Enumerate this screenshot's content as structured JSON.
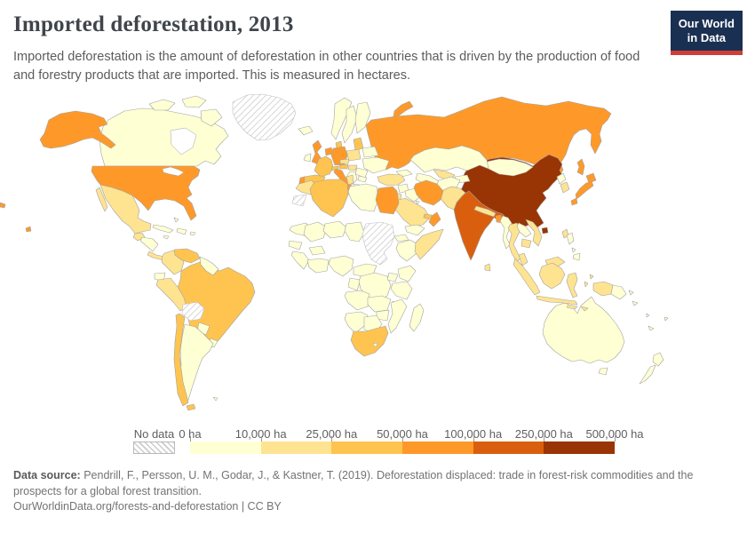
{
  "header": {
    "title": "Imported deforestation, 2013",
    "subtitle": "Imported deforestation is the amount of deforestation in other countries that is driven by the production of food and forestry products that are imported. This is measured in hectares.",
    "logo": {
      "line1": "Our World",
      "line2": "in Data"
    }
  },
  "legend": {
    "no_data_label": "No data",
    "ticks": [
      "0 ha",
      "10,000 ha",
      "25,000 ha",
      "50,000 ha",
      "100,000 ha",
      "250,000 ha",
      "500,000 ha"
    ],
    "colors": [
      "#ffffd4",
      "#fee391",
      "#fec44f",
      "#fe9929",
      "#d95f0e",
      "#993404"
    ]
  },
  "footer": {
    "source_label": "Data source:",
    "source_text": " Pendrill, F., Persson, U. M., Godar, J., & Kastner, T. (2019). Deforestation displaced: trade in forest-risk commodities and the prospects for a global forest transition.",
    "link_line": "OurWorldinData.org/forests-and-deforestation | CC BY"
  },
  "colors": {
    "logo_bg": "#1a3053",
    "logo_red": "#cf3e36",
    "map_border": "#a3a3a3",
    "no_data_hatch": "#cccccc"
  },
  "chart_data": {
    "type": "choropleth",
    "title": "Imported deforestation, 2013",
    "unit": "hectares",
    "year": 2013,
    "legend_position": "bottom",
    "bins": [
      {
        "range": "0 – 10,000 ha",
        "color": "#ffffd4"
      },
      {
        "range": "10,000 – 25,000 ha",
        "color": "#fee391"
      },
      {
        "range": "25,000 – 50,000 ha",
        "color": "#fec44f"
      },
      {
        "range": "50,000 – 100,000 ha",
        "color": "#fe9929"
      },
      {
        "range": "100,000 – 250,000 ha",
        "color": "#d95f0e"
      },
      {
        "range": "250,000 – 500,000 ha",
        "color": "#993404"
      }
    ],
    "no_data": [
      "Greenland",
      "Bolivia",
      "Sudan",
      "Western Sahara"
    ],
    "country_bins": {
      "Canada": 1,
      "Honduras-Nicaragua": 1,
      "Cuba": 1,
      "Hispaniola": 1,
      "Jamaica": 1,
      "Puerto Rico": 1,
      "Bahamas": 1,
      "Ecuador": 1,
      "Guyana-Suriname": 1,
      "Paraguay": 1,
      "Uruguay": 1,
      "Argentina": 1,
      "Falkland Islands": 1,
      "Iceland": 1,
      "Ireland": 1,
      "Norway": 1,
      "Sweden": 1,
      "Finland": 1,
      "Belarus": 1,
      "Ukraine": 1,
      "Romania": 1,
      "Bulgaria": 1,
      "Balkans": 1,
      "Greece": 1,
      "Kazakhstan": 1,
      "Turkmenistan": 1,
      "Kyrgyzstan-Tajikistan": 1,
      "Caucasus": 1,
      "Mongolia": 1,
      "North Korea": 1,
      "Afghanistan": 1,
      "Iraq": 1,
      "Syria": 1,
      "Yemen": 1,
      "Kuwait": 1,
      "Libya": 1,
      "Mauritania": 1,
      "Mali": 1,
      "Niger": 1,
      "Chad": 1,
      "Eritrea-Djibouti": 1,
      "Ethiopia": 1,
      "Senegal": 1,
      "Guinea": 1,
      "Ghana-Ivory Coast": 1,
      "Burkina Faso": 1,
      "Nigeria": 1,
      "Cameroon-CAR": 1,
      "Congo-Gabon": 1,
      "DR Congo": 1,
      "Uganda": 1,
      "Kenya": 1,
      "Tanzania": 1,
      "Angola": 1,
      "Zambia": 1,
      "Malawi": 1,
      "Mozambique": 1,
      "Zimbabwe": 1,
      "Namibia": 1,
      "Botswana": 1,
      "Madagascar": 1,
      "Myanmar": 1,
      "Laos": 1,
      "Philippines": 1,
      "Papua New Guinea": 1,
      "Australia": 1,
      "New Zealand": 1,
      "Fiji": 1,
      "Vanuatu": 1,
      "New Caledonia": 1,
      "Solomon Islands": 1,
      "Mexico": 2,
      "Guatemala": 2,
      "Costa Rica-Panama": 2,
      "Colombia": 2,
      "Peru": 2,
      "Poland": 2,
      "Czechia": 2,
      "Hungary": 2,
      "Turkey": 2,
      "Israel-Jordan": 2,
      "Saudi Arabia": 2,
      "Uzbekistan": 2,
      "Pakistan": 2,
      "Nepal-Bhutan": 2,
      "South Korea": 2,
      "Taiwan": 2,
      "Thailand": 2,
      "Vietnam": 2,
      "Cambodia": 2,
      "Malaysia": 2,
      "Indonesia": 2,
      "Sri Lanka": 2,
      "Morocco": 2,
      "Tunisia": 2,
      "Somalia": 2,
      "Venezuela": 3,
      "Brazil": 3,
      "Chile": 3,
      "France": 3,
      "Spain": 3,
      "Switzerland": 3,
      "Austria": 3,
      "Denmark": 3,
      "Baltic States": 3,
      "Algeria": 3,
      "South Africa": 3,
      "UAE-Qatar": 3,
      "United States": 4,
      "United Kingdom": 4,
      "Portugal": 4,
      "Germany": 4,
      "Benelux": 4,
      "Italy": 4,
      "Russia": 4,
      "Iran": 4,
      "Egypt": 4,
      "Oman": 4,
      "Japan": 4,
      "Bangladesh": 4,
      "India": 5,
      "China": 6
    }
  }
}
